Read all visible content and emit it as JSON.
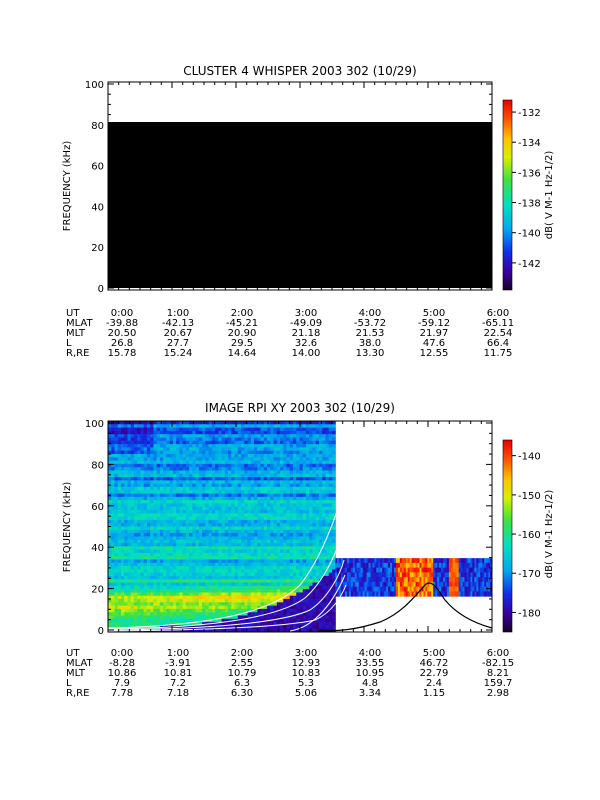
{
  "chart_data": [
    {
      "type": "heatmap",
      "title": "CLUSTER 4 WHISPER 2003 302 (10/29)",
      "ylabel": "FREQUENCY (kHz)",
      "ylim": [
        0,
        100
      ],
      "yticks": [
        "0",
        "20",
        "40",
        "60",
        "80",
        "100"
      ],
      "colorbar": {
        "label": "dB( V M⁻¹ Hz⁻¹ᐟ²)",
        "label_text": "dB( V M-1 Hz-1/2)",
        "range": [
          -143.8,
          -131.2
        ],
        "ticks": [
          "-132",
          "-134",
          "-136",
          "-138",
          "-140",
          "-142"
        ],
        "tick_values": [
          -132,
          -134,
          -136,
          -138,
          -140,
          -142
        ]
      },
      "data_region": {
        "freq_range_khz": [
          0,
          80
        ],
        "value_db": "below -143",
        "color": "#000000"
      },
      "ephemeris": {
        "rows": [
          {
            "label": "UT",
            "values": [
              "0:00",
              "1:00",
              "2:00",
              "3:00",
              "4:00",
              "5:00",
              "6:00"
            ]
          },
          {
            "label": "MLAT",
            "values": [
              "-39.88",
              "-42.13",
              "-45.21",
              "-49.09",
              "-53.72",
              "-59.12",
              "-65.11"
            ]
          },
          {
            "label": "MLT",
            "values": [
              "20.50",
              "20.67",
              "20.90",
              "21.18",
              "21.53",
              "21.97",
              "22.54"
            ]
          },
          {
            "label": "L",
            "values": [
              "26.8",
              "27.7",
              "29.5",
              "32.6",
              "38.0",
              "47.6",
              "66.4"
            ]
          },
          {
            "label": "R,RE",
            "values": [
              "15.78",
              "15.24",
              "14.64",
              "14.00",
              "13.30",
              "12.55",
              "11.75"
            ]
          }
        ]
      }
    },
    {
      "type": "heatmap",
      "title": "IMAGE RPI XY 2003 302 (10/29)",
      "ylabel": "FREQUENCY (kHz)",
      "ylim": [
        0,
        100
      ],
      "yticks": [
        "0",
        "20",
        "40",
        "60",
        "80",
        "100"
      ],
      "colorbar": {
        "label": "dB( V M⁻¹ Hz⁻¹ᐟ²)",
        "label_text": "dB( V M-1 Hz-1/2)",
        "range": [
          -185,
          -136
        ],
        "ticks": [
          "-140",
          "-150",
          "-160",
          "-170",
          "-180"
        ],
        "tick_values": [
          -140,
          -150,
          -160,
          -170,
          -180
        ]
      },
      "data_region": {
        "time_range_h": [
          0,
          3.55
        ],
        "freq_range_khz": [
          0,
          100
        ]
      },
      "late_band": {
        "time_range_h": [
          3.55,
          6.0
        ],
        "freq_range_khz": [
          17,
          35
        ]
      },
      "ephemeris": {
        "rows": [
          {
            "label": "UT",
            "values": [
              "0:00",
              "1:00",
              "2:00",
              "3:00",
              "4:00",
              "5:00",
              "6:00"
            ]
          },
          {
            "label": "MLAT",
            "values": [
              "-8.28",
              "-3.91",
              "2.55",
              "12.93",
              "33.55",
              "46.72",
              "-82.15"
            ]
          },
          {
            "label": "MLT",
            "values": [
              "10.86",
              "10.81",
              "10.79",
              "10.83",
              "10.95",
              "22.79",
              "8.21"
            ]
          },
          {
            "label": "L",
            "values": [
              "7.9",
              "7.2",
              "6.3",
              "5.3",
              "4.8",
              "2.4",
              "159.7"
            ]
          },
          {
            "label": "R,RE",
            "values": [
              "7.78",
              "7.18",
              "6.30",
              "5.06",
              "3.34",
              "1.15",
              "2.98"
            ]
          }
        ]
      }
    }
  ]
}
